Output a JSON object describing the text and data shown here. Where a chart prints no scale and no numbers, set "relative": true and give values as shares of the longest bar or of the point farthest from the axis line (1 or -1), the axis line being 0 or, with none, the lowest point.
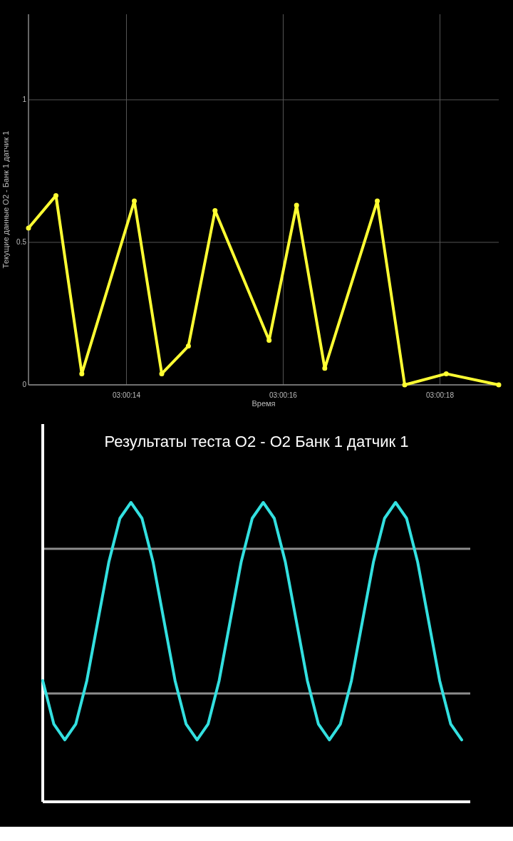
{
  "chart_data": [
    {
      "type": "line",
      "xlabel": "Время",
      "ylabel": "Текущие данные O2 - Банк 1 датчик 1",
      "x": [
        3.0035417,
        3.0036389,
        3.0037306,
        3.0039167,
        3.0040139,
        3.0041083,
        3.0042028,
        3.0043944,
        3.0044917,
        3.0045917,
        3.0047778,
        3.004875,
        3.0050222,
        3.0052083
      ],
      "series": [
        {
          "color": "#ffff33",
          "values": [
            0.55,
            0.664,
            0.039,
            0.645,
            0.039,
            0.136,
            0.611,
            0.156,
            0.63,
            0.058,
            0.645,
            0,
            0.039,
            0
          ]
        }
      ],
      "xlim": [
        3.0035417,
        3.0052083
      ],
      "xticks": [
        {
          "value": 3.0038889,
          "label": "03:00:14"
        },
        {
          "value": 3.0044444,
          "label": "03:00:16"
        },
        {
          "value": 3.005,
          "label": "03:00:18"
        }
      ],
      "ylim": [
        0,
        1.3
      ],
      "yticks": [
        0,
        0.5,
        1
      ],
      "grid": true,
      "marker": "circle",
      "line_style": "solid"
    },
    {
      "type": "line",
      "title": "Результаты теста O2 - O2 Банк 1 датчик 1",
      "relative": true,
      "categories": [
        null,
        null,
        null,
        null,
        null,
        null,
        null,
        null,
        null,
        null,
        null,
        null,
        null,
        null,
        null,
        null,
        null,
        null,
        null,
        null,
        null,
        null,
        null,
        null,
        null,
        null,
        null,
        null,
        null,
        null,
        null,
        null,
        null,
        null,
        null,
        null,
        null,
        null,
        null
      ],
      "series": [
        {
          "color": "#33e0e0",
          "values": [
            0.405,
            0.26,
            0.207,
            0.26,
            0.405,
            0.604,
            0.802,
            0.947,
            1,
            0.947,
            0.802,
            0.604,
            0.405,
            0.26,
            0.207,
            0.26,
            0.405,
            0.604,
            0.802,
            0.947,
            1,
            0.947,
            0.802,
            0.604,
            0.405,
            0.26,
            0.207,
            0.26,
            0.405,
            0.604,
            0.802,
            0.947,
            1,
            0.947,
            0.802,
            0.604,
            0.405,
            0.26,
            0.207
          ]
        }
      ],
      "ref_lines": [
        {
          "axis": "y",
          "value": 0.845,
          "color": "#8c8c8c"
        },
        {
          "axis": "y",
          "value": 0.362,
          "color": "#8c8c8c"
        }
      ],
      "marker": "none",
      "line_style": "solid"
    }
  ]
}
